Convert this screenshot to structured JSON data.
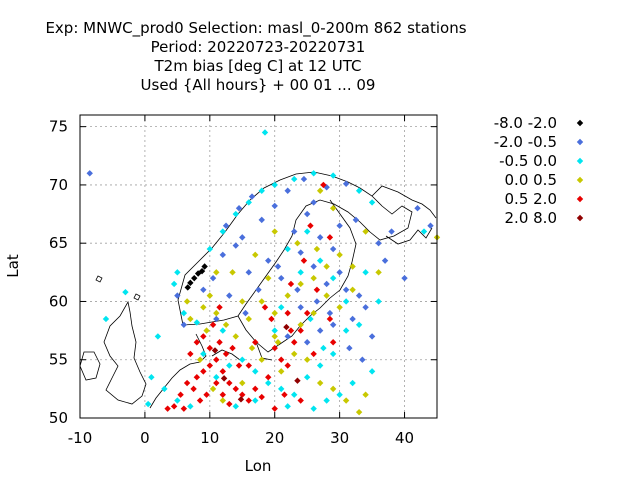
{
  "chart_data": {
    "type": "scatter",
    "title_lines": [
      "Exp: MNWC_prod0   Selection: masl_0-200m    862 stations",
      "Period: 20220723-20220731",
      "T2m bias [deg C] at  12 UTC",
      "Used {All hours} + 00 01 ... 09"
    ],
    "xlabel": "Lon",
    "ylabel": "Lat",
    "xlim": [
      -10,
      45
    ],
    "ylim": [
      50,
      76
    ],
    "xticks": [
      -10,
      0,
      10,
      20,
      30,
      40
    ],
    "yticks": [
      50,
      55,
      60,
      65,
      70,
      75
    ],
    "grid": true,
    "legend_placement": "outside-right",
    "series": [
      {
        "name": "-8.0 -2.0",
        "color": "#000000",
        "points": [
          [
            7.0,
            61.6
          ],
          [
            7.6,
            62.0
          ],
          [
            8.2,
            62.4
          ],
          [
            6.6,
            61.2
          ],
          [
            8.8,
            62.6
          ],
          [
            9.2,
            63.0
          ]
        ]
      },
      {
        "name": "-2.0 -0.5",
        "color": "#4a6fdc",
        "points": [
          [
            -8.5,
            71.0
          ],
          [
            24.5,
            70.5
          ],
          [
            28.0,
            69.8
          ],
          [
            31.0,
            70.1
          ],
          [
            22.0,
            69.5
          ],
          [
            26.0,
            68.5
          ],
          [
            20.0,
            68.2
          ],
          [
            18.0,
            67.0
          ],
          [
            25.0,
            67.5
          ],
          [
            23.0,
            66.0
          ],
          [
            27.0,
            65.5
          ],
          [
            29.0,
            64.5
          ],
          [
            24.0,
            64.2
          ],
          [
            26.0,
            63.0
          ],
          [
            30.0,
            62.5
          ],
          [
            28.0,
            61.5
          ],
          [
            31.0,
            61.0
          ],
          [
            33.0,
            60.5
          ],
          [
            34.0,
            59.5
          ],
          [
            32.0,
            58.5
          ],
          [
            35.0,
            57.0
          ],
          [
            29.0,
            58.0
          ],
          [
            27.0,
            57.5
          ],
          [
            25.0,
            56.5
          ],
          [
            22.0,
            57.0
          ],
          [
            15.0,
            65.5
          ],
          [
            14.0,
            64.8
          ],
          [
            12.0,
            64.0
          ],
          [
            10.5,
            62.0
          ],
          [
            9.0,
            61.0
          ],
          [
            16.0,
            62.5
          ],
          [
            17.5,
            61.0
          ],
          [
            19.0,
            63.5
          ],
          [
            21.0,
            62.0
          ],
          [
            13.0,
            60.5
          ],
          [
            15.5,
            59.0
          ],
          [
            11.0,
            58.5
          ],
          [
            30.0,
            66.5
          ],
          [
            32.5,
            67.0
          ],
          [
            36.0,
            65.0
          ],
          [
            38.0,
            66.0
          ],
          [
            42.0,
            68.0
          ],
          [
            44.0,
            66.5
          ],
          [
            40.0,
            62.0
          ],
          [
            37.0,
            63.5
          ],
          [
            12.5,
            66.5
          ],
          [
            14.5,
            68.0
          ],
          [
            16.5,
            69.0
          ],
          [
            20.5,
            63.0
          ],
          [
            23.5,
            61.0
          ],
          [
            26.5,
            60.0
          ],
          [
            28.5,
            59.0
          ],
          [
            31.5,
            56.0
          ],
          [
            33.5,
            55.0
          ],
          [
            24.0,
            59.5
          ],
          [
            6.0,
            58.0
          ],
          [
            5.0,
            60.5
          ]
        ]
      },
      {
        "name": "-0.5 0.0",
        "color": "#00e5f0",
        "points": [
          [
            18.5,
            74.5
          ],
          [
            -3.0,
            60.8
          ],
          [
            -6.0,
            58.5
          ],
          [
            2.0,
            57.0
          ],
          [
            4.5,
            61.5
          ],
          [
            6.0,
            59.0
          ],
          [
            8.0,
            58.2
          ],
          [
            5.0,
            62.5
          ],
          [
            10.0,
            64.5
          ],
          [
            12.0,
            66.0
          ],
          [
            14.0,
            67.5
          ],
          [
            16.0,
            68.5
          ],
          [
            18.0,
            69.5
          ],
          [
            20.0,
            70.0
          ],
          [
            23.0,
            70.5
          ],
          [
            26.0,
            71.0
          ],
          [
            29.0,
            70.8
          ],
          [
            33.0,
            69.5
          ],
          [
            35.0,
            68.5
          ],
          [
            11.0,
            53.5
          ],
          [
            13.0,
            54.5
          ],
          [
            15.0,
            55.0
          ],
          [
            17.0,
            54.0
          ],
          [
            19.0,
            53.0
          ],
          [
            21.0,
            52.5
          ],
          [
            23.0,
            52.0
          ],
          [
            25.0,
            53.5
          ],
          [
            27.0,
            54.5
          ],
          [
            29.0,
            55.5
          ],
          [
            31.0,
            57.5
          ],
          [
            33.0,
            58.0
          ],
          [
            35.0,
            54.0
          ],
          [
            30.0,
            52.0
          ],
          [
            28.0,
            51.5
          ],
          [
            26.0,
            50.8
          ],
          [
            22.0,
            51.0
          ],
          [
            17.0,
            51.5
          ],
          [
            14.0,
            51.0
          ],
          [
            5.0,
            51.5
          ],
          [
            3.0,
            52.5
          ],
          [
            1.0,
            53.5
          ],
          [
            0.5,
            51.2
          ],
          [
            7.0,
            51.0
          ],
          [
            9.0,
            55.5
          ],
          [
            12.0,
            57.5
          ],
          [
            20.0,
            57.5
          ],
          [
            21.0,
            59.5
          ],
          [
            24.0,
            62.5
          ],
          [
            22.0,
            64.5
          ],
          [
            25.0,
            66.0
          ],
          [
            27.0,
            63.5
          ],
          [
            29.0,
            62.0
          ],
          [
            31.0,
            60.0
          ],
          [
            34.0,
            62.5
          ],
          [
            36.0,
            60.0
          ],
          [
            43.0,
            66.0
          ],
          [
            25.5,
            58.5
          ],
          [
            27.5,
            56.0
          ],
          [
            32.0,
            53.0
          ]
        ]
      },
      {
        "name": "0.0 0.5",
        "color": "#c8c800",
        "points": [
          [
            6.5,
            60.0
          ],
          [
            7.0,
            58.5
          ],
          [
            9.0,
            59.5
          ],
          [
            10.0,
            60.5
          ],
          [
            11.0,
            59.0
          ],
          [
            12.5,
            58.0
          ],
          [
            14.0,
            57.0
          ],
          [
            16.0,
            58.5
          ],
          [
            18.0,
            60.0
          ],
          [
            20.0,
            59.0
          ],
          [
            22.0,
            60.5
          ],
          [
            24.0,
            61.5
          ],
          [
            26.0,
            62.0
          ],
          [
            28.0,
            63.0
          ],
          [
            30.0,
            64.0
          ],
          [
            32.0,
            63.0
          ],
          [
            26.5,
            64.5
          ],
          [
            23.5,
            65.0
          ],
          [
            20.0,
            66.0
          ],
          [
            17.0,
            64.0
          ],
          [
            13.5,
            62.5
          ],
          [
            11.0,
            62.5
          ],
          [
            9.5,
            57.5
          ],
          [
            8.5,
            55.0
          ],
          [
            10.5,
            52.5
          ],
          [
            12.0,
            51.5
          ],
          [
            15.0,
            53.0
          ],
          [
            18.0,
            55.0
          ],
          [
            20.5,
            56.5
          ],
          [
            23.0,
            55.5
          ],
          [
            25.0,
            55.0
          ],
          [
            27.0,
            53.0
          ],
          [
            29.0,
            52.5
          ],
          [
            31.0,
            51.5
          ],
          [
            33.0,
            50.5
          ],
          [
            34.0,
            52.0
          ],
          [
            24.0,
            58.0
          ],
          [
            26.0,
            59.0
          ],
          [
            28.0,
            60.5
          ],
          [
            30.0,
            59.5
          ],
          [
            32.0,
            61.0
          ],
          [
            34.0,
            66.0
          ],
          [
            36.0,
            62.5
          ],
          [
            45.0,
            65.5
          ],
          [
            29.0,
            68.0
          ],
          [
            27.0,
            69.5
          ],
          [
            20.0,
            57.0
          ],
          [
            19.0,
            62.0
          ],
          [
            15.0,
            60.0
          ],
          [
            21.0,
            54.0
          ],
          [
            16.5,
            56.0
          ]
        ]
      },
      {
        "name": "0.5 2.0",
        "color": "#e80000",
        "points": [
          [
            8.0,
            53.5
          ],
          [
            9.0,
            54.0
          ],
          [
            10.0,
            54.5
          ],
          [
            11.0,
            55.0
          ],
          [
            12.0,
            54.0
          ],
          [
            13.0,
            53.0
          ],
          [
            14.0,
            52.5
          ],
          [
            15.0,
            52.0
          ],
          [
            16.0,
            51.5
          ],
          [
            17.0,
            52.5
          ],
          [
            18.0,
            51.8
          ],
          [
            9.5,
            52.0
          ],
          [
            8.5,
            51.5
          ],
          [
            7.5,
            52.5
          ],
          [
            6.5,
            53.0
          ],
          [
            5.5,
            52.0
          ],
          [
            4.5,
            51.0
          ],
          [
            3.5,
            50.8
          ],
          [
            7.0,
            55.5
          ],
          [
            8.0,
            56.5
          ],
          [
            9.0,
            57.0
          ],
          [
            10.0,
            56.0
          ],
          [
            11.5,
            56.5
          ],
          [
            12.5,
            55.5
          ],
          [
            13.5,
            56.0
          ],
          [
            14.5,
            54.5
          ],
          [
            10.5,
            58.0
          ],
          [
            11.5,
            59.5
          ],
          [
            18.5,
            59.5
          ],
          [
            19.5,
            58.5
          ],
          [
            20.0,
            56.0
          ],
          [
            21.0,
            55.0
          ],
          [
            22.0,
            54.5
          ],
          [
            23.0,
            56.5
          ],
          [
            24.0,
            57.5
          ],
          [
            25.0,
            59.0
          ],
          [
            22.5,
            61.5
          ],
          [
            24.5,
            63.5
          ],
          [
            26.5,
            61.0
          ],
          [
            28.5,
            58.5
          ],
          [
            29.0,
            56.5
          ],
          [
            26.0,
            55.5
          ],
          [
            21.5,
            52.0
          ],
          [
            24.0,
            51.5
          ],
          [
            20.0,
            50.8
          ],
          [
            19.0,
            53.5
          ],
          [
            16.0,
            54.5
          ],
          [
            17.0,
            56.5
          ],
          [
            22.0,
            59.0
          ],
          [
            25.5,
            66.5
          ],
          [
            27.5,
            70.0
          ],
          [
            28.5,
            65.5
          ],
          [
            11.0,
            53.0
          ],
          [
            12.0,
            52.0
          ],
          [
            13.0,
            51.2
          ],
          [
            6.0,
            50.8
          ],
          [
            22.5,
            57.5
          ]
        ]
      },
      {
        "name": "2.0 8.0",
        "color": "#900000",
        "points": [
          [
            10.8,
            55.8
          ],
          [
            12.2,
            53.4
          ],
          [
            14.8,
            51.6
          ],
          [
            21.8,
            57.8
          ],
          [
            23.5,
            53.2
          ]
        ]
      }
    ]
  }
}
